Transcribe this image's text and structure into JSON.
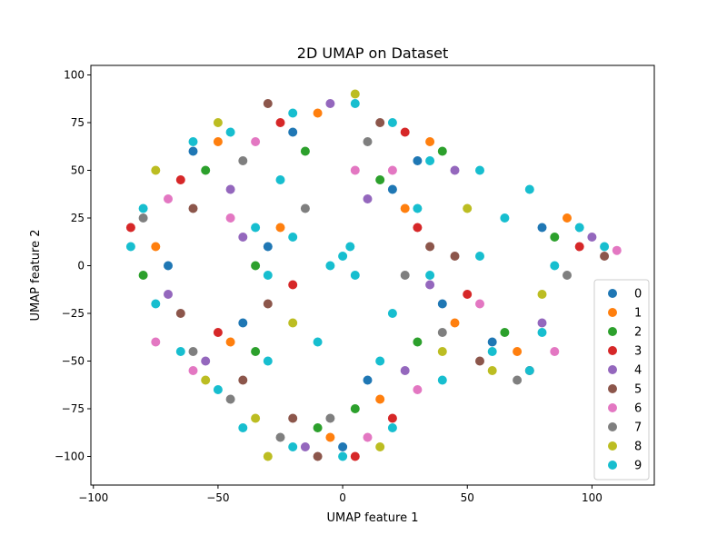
{
  "chart_data": {
    "type": "scatter",
    "title": "2D UMAP on Dataset",
    "xlabel": "UMAP feature 1",
    "ylabel": "UMAP feature 2",
    "xlim": [
      -101,
      125
    ],
    "ylim": [
      -115,
      105
    ],
    "xticks": [
      -100,
      -50,
      0,
      50,
      100
    ],
    "xtick_labels": [
      "−100",
      "−50",
      "0",
      "50",
      "100"
    ],
    "yticks": [
      -100,
      -75,
      -50,
      -25,
      0,
      25,
      50,
      75,
      100
    ],
    "ytick_labels": [
      "−100",
      "−75",
      "−50",
      "−25",
      "0",
      "25",
      "50",
      "75",
      "100"
    ],
    "grid": false,
    "legend_position": "lower-right",
    "series": [
      {
        "name": "0",
        "color": "#1f77b4",
        "points": [
          [
            -60,
            60
          ],
          [
            -20,
            70
          ],
          [
            30,
            55
          ],
          [
            80,
            20
          ],
          [
            -40,
            -30
          ],
          [
            10,
            -60
          ],
          [
            60,
            -40
          ],
          [
            -70,
            0
          ],
          [
            0,
            -95
          ],
          [
            40,
            -20
          ],
          [
            -30,
            10
          ],
          [
            20,
            40
          ]
        ]
      },
      {
        "name": "1",
        "color": "#ff7f0e",
        "points": [
          [
            -50,
            65
          ],
          [
            -10,
            80
          ],
          [
            35,
            65
          ],
          [
            90,
            25
          ],
          [
            -45,
            -40
          ],
          [
            15,
            -70
          ],
          [
            70,
            -45
          ],
          [
            -75,
            10
          ],
          [
            -5,
            -90
          ],
          [
            45,
            -30
          ],
          [
            -25,
            20
          ],
          [
            25,
            30
          ]
        ]
      },
      {
        "name": "2",
        "color": "#2ca02c",
        "points": [
          [
            -55,
            50
          ],
          [
            -15,
            60
          ],
          [
            40,
            60
          ],
          [
            85,
            15
          ],
          [
            -35,
            -45
          ],
          [
            5,
            -75
          ],
          [
            65,
            -35
          ],
          [
            -80,
            -5
          ],
          [
            -10,
            -85
          ],
          [
            30,
            -40
          ],
          [
            -35,
            0
          ],
          [
            15,
            45
          ]
        ]
      },
      {
        "name": "3",
        "color": "#d62728",
        "points": [
          [
            -65,
            45
          ],
          [
            -25,
            75
          ],
          [
            25,
            70
          ],
          [
            95,
            10
          ],
          [
            -50,
            -35
          ],
          [
            20,
            -80
          ],
          [
            75,
            -55
          ],
          [
            -85,
            20
          ],
          [
            5,
            -100
          ],
          [
            50,
            -15
          ],
          [
            -20,
            -10
          ],
          [
            30,
            20
          ]
        ]
      },
      {
        "name": "4",
        "color": "#9467bd",
        "points": [
          [
            -45,
            40
          ],
          [
            -5,
            85
          ],
          [
            45,
            50
          ],
          [
            100,
            15
          ],
          [
            -55,
            -50
          ],
          [
            25,
            -55
          ],
          [
            80,
            -30
          ],
          [
            -70,
            -15
          ],
          [
            -15,
            -95
          ],
          [
            35,
            -10
          ],
          [
            -40,
            15
          ],
          [
            10,
            35
          ]
        ]
      },
      {
        "name": "5",
        "color": "#8c564b",
        "points": [
          [
            -60,
            30
          ],
          [
            -30,
            85
          ],
          [
            15,
            75
          ],
          [
            105,
            5
          ],
          [
            -40,
            -60
          ],
          [
            -10,
            -100
          ],
          [
            55,
            -50
          ],
          [
            -65,
            -25
          ],
          [
            -20,
            -80
          ],
          [
            45,
            5
          ],
          [
            -30,
            -20
          ],
          [
            35,
            10
          ]
        ]
      },
      {
        "name": "6",
        "color": "#e377c2",
        "points": [
          [
            -70,
            35
          ],
          [
            -35,
            65
          ],
          [
            20,
            50
          ],
          [
            110,
            8
          ],
          [
            -60,
            -55
          ],
          [
            30,
            -65
          ],
          [
            85,
            -45
          ],
          [
            -75,
            -40
          ],
          [
            10,
            -90
          ],
          [
            55,
            -20
          ],
          [
            -45,
            25
          ],
          [
            5,
            50
          ]
        ]
      },
      {
        "name": "7",
        "color": "#7f7f7f",
        "points": [
          [
            -80,
            25
          ],
          [
            -40,
            55
          ],
          [
            10,
            65
          ],
          [
            90,
            -5
          ],
          [
            -45,
            -70
          ],
          [
            -5,
            -80
          ],
          [
            70,
            -60
          ],
          [
            -60,
            -45
          ],
          [
            -25,
            -90
          ],
          [
            40,
            -35
          ],
          [
            -15,
            30
          ],
          [
            25,
            -5
          ]
        ]
      },
      {
        "name": "8",
        "color": "#bcbd22",
        "points": [
          [
            -75,
            50
          ],
          [
            -50,
            75
          ],
          [
            5,
            90
          ],
          [
            80,
            -15
          ],
          [
            -35,
            -80
          ],
          [
            15,
            -95
          ],
          [
            60,
            -55
          ],
          [
            -55,
            -60
          ],
          [
            -30,
            -100
          ],
          [
            50,
            30
          ],
          [
            -20,
            -30
          ],
          [
            40,
            -45
          ]
        ]
      },
      {
        "name": "9",
        "color": "#17becf",
        "points": [
          [
            0,
            5
          ],
          [
            -5,
            0
          ],
          [
            5,
            -5
          ],
          [
            3,
            10
          ],
          [
            -60,
            65
          ],
          [
            -45,
            70
          ],
          [
            -20,
            80
          ],
          [
            5,
            85
          ],
          [
            20,
            75
          ],
          [
            35,
            55
          ],
          [
            55,
            50
          ],
          [
            75,
            40
          ],
          [
            95,
            20
          ],
          [
            105,
            10
          ],
          [
            -80,
            30
          ],
          [
            -85,
            10
          ],
          [
            -75,
            -20
          ],
          [
            -65,
            -45
          ],
          [
            -50,
            -65
          ],
          [
            -40,
            -85
          ],
          [
            -20,
            -95
          ],
          [
            0,
            -100
          ],
          [
            20,
            -85
          ],
          [
            40,
            -60
          ],
          [
            60,
            -45
          ],
          [
            75,
            -55
          ],
          [
            80,
            -35
          ],
          [
            -30,
            -50
          ],
          [
            -10,
            -40
          ],
          [
            20,
            -25
          ],
          [
            35,
            -5
          ],
          [
            30,
            30
          ],
          [
            -25,
            45
          ],
          [
            -35,
            20
          ],
          [
            -30,
            -5
          ],
          [
            -20,
            15
          ],
          [
            15,
            -50
          ],
          [
            55,
            5
          ],
          [
            65,
            25
          ],
          [
            85,
            0
          ]
        ]
      }
    ]
  }
}
